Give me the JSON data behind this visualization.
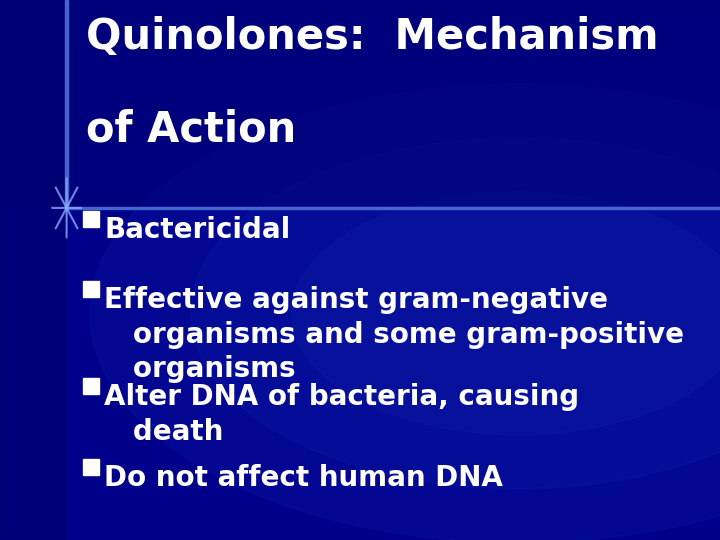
{
  "title_line1": "Quinolones:  Mechanism",
  "title_line2": "of Action",
  "title_color": "#FFFFFF",
  "title_fontsize": 30,
  "title_fontweight": "bold",
  "bg_dark": "#00008B",
  "bg_darker": "#000070",
  "glow_color": "#1a3cc8",
  "left_strip_color": "#0000aa",
  "divider_color": "#4466cc",
  "cross_color": "#88aaff",
  "bullet_square_color": "#FFFFFF",
  "bullet_text_color": "#FFFFFF",
  "bullet_fontsize": 20,
  "bullet_fontweight": "bold",
  "bullet_lines": [
    [
      "Bactericidal"
    ],
    [
      "Effective against gram-negative",
      "   organisms and some gram-positive",
      "   organisms"
    ],
    [
      "Alter DNA of bacteria, causing",
      "   death"
    ],
    [
      "Do not affect human DNA"
    ]
  ],
  "figwidth": 7.2,
  "figheight": 5.4,
  "dpi": 100
}
